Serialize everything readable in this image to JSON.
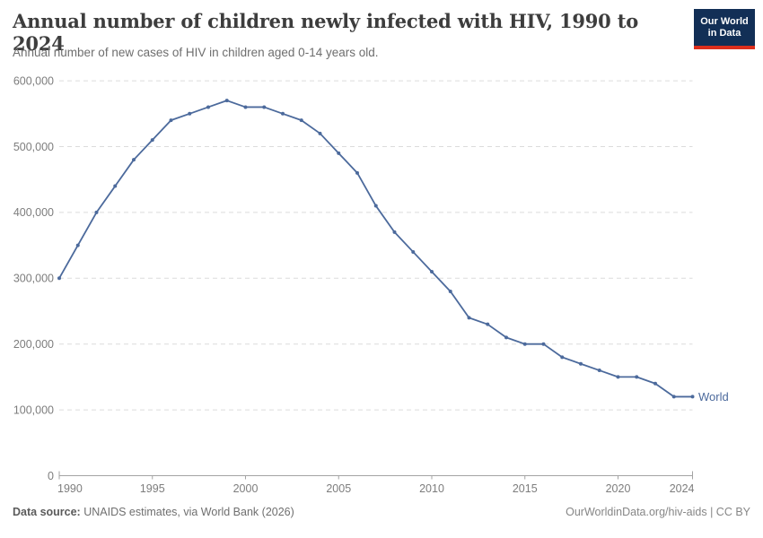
{
  "header": {
    "title": "Annual number of children newly infected with HIV, 1990 to 2024",
    "subtitle": "Annual number of new cases of HIV in children aged 0-14 years old.",
    "logo": {
      "line1": "Our World",
      "line2": "in Data",
      "bg_color": "#122f56",
      "accent_color": "#dc2e1c"
    }
  },
  "chart_data": {
    "type": "line",
    "title": "Annual number of children newly infected with HIV, 1990 to 2024",
    "subtitle": "Annual number of new cases of HIV in children aged 0-14 years old.",
    "xlabel": "",
    "ylabel": "",
    "ylim": [
      0,
      600000
    ],
    "yticks": [
      0,
      100000,
      200000,
      300000,
      400000,
      500000,
      600000
    ],
    "xticks": [
      1990,
      1995,
      2000,
      2005,
      2010,
      2015,
      2020,
      2024
    ],
    "grid": "horizontal-dashed",
    "legend": "end-of-line-label",
    "series": [
      {
        "name": "World",
        "color": "#4c6a9c",
        "x": [
          1990,
          1991,
          1992,
          1993,
          1994,
          1995,
          1996,
          1997,
          1998,
          1999,
          2000,
          2001,
          2002,
          2003,
          2004,
          2005,
          2006,
          2007,
          2008,
          2009,
          2010,
          2011,
          2012,
          2013,
          2014,
          2015,
          2016,
          2017,
          2018,
          2019,
          2020,
          2021,
          2022,
          2023,
          2024
        ],
        "values": [
          300000,
          350000,
          400000,
          440000,
          480000,
          510000,
          540000,
          550000,
          560000,
          570000,
          560000,
          560000,
          550000,
          540000,
          520000,
          490000,
          460000,
          410000,
          370000,
          340000,
          310000,
          280000,
          240000,
          230000,
          210000,
          200000,
          200000,
          180000,
          170000,
          160000,
          150000,
          150000,
          140000,
          120000,
          120000
        ]
      }
    ],
    "colors": {
      "gridline": "#dcdcdc",
      "axis": "#a3a3a3",
      "tick_label": "#7d7d7d"
    }
  },
  "footer": {
    "source_label": "Data source:",
    "source_text": " UNAIDS estimates, via World Bank (2026)",
    "license_text": "OurWorldinData.org/hiv-aids | CC BY"
  }
}
